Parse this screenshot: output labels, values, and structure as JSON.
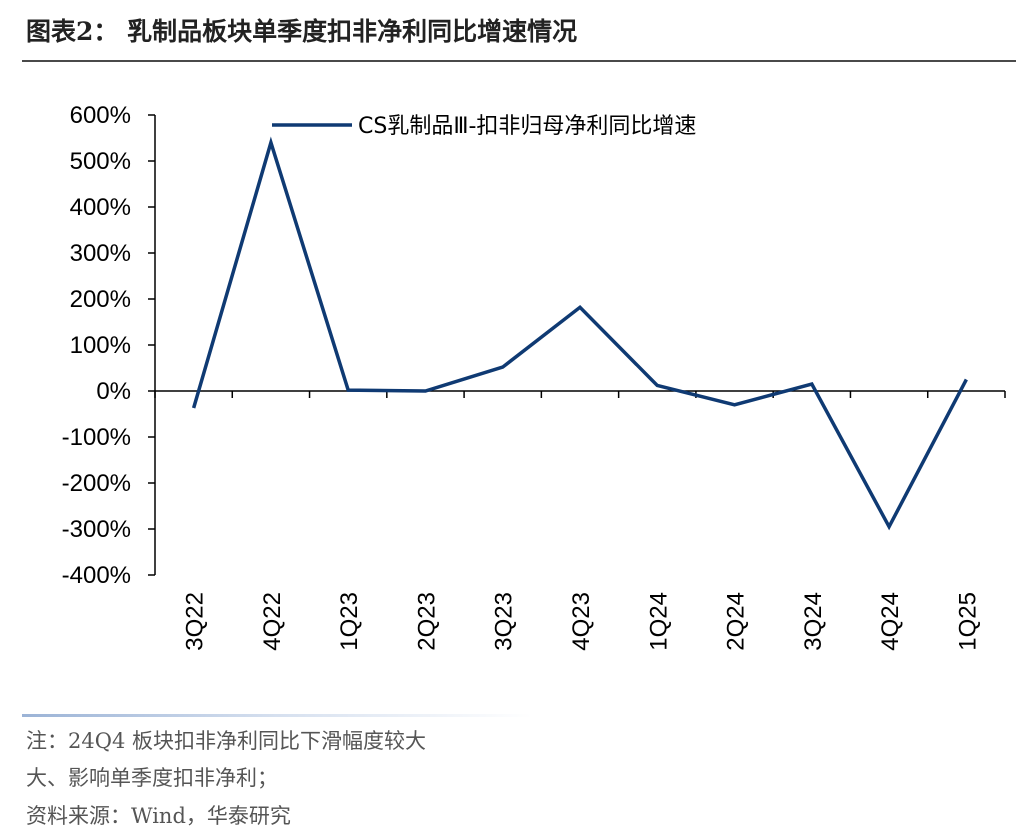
{
  "header": {
    "title": "图表2： 乳制品板块单季度扣非净利同比增速情况"
  },
  "notes": {
    "line1": "注：24Q4 板块扣非净利同比下滑幅度较大",
    "line2": "大、影响单季度扣非净利；",
    "source": "资料来源：Wind，华泰研究"
  },
  "colors": {
    "series": "#0f3a73",
    "axis": "#000000"
  },
  "chart_data": {
    "type": "line",
    "title": "",
    "xlabel": "",
    "ylabel": "",
    "categories": [
      "3Q22",
      "4Q22",
      "1Q23",
      "2Q23",
      "3Q23",
      "4Q23",
      "1Q24",
      "2Q24",
      "3Q24",
      "4Q24",
      "1Q25"
    ],
    "series": [
      {
        "name": "CS乳制品Ⅲ-扣非归母净利同比增速",
        "values": [
          -37,
          540,
          2,
          0,
          52,
          182,
          12,
          -30,
          15,
          -295,
          25
        ]
      }
    ],
    "ylim": [
      -400,
      600
    ],
    "yticks": [
      -400,
      -300,
      -200,
      -100,
      0,
      100,
      200,
      300,
      400,
      500,
      600
    ],
    "y_tick_format": "percent",
    "grid": false,
    "legend_position": "top"
  }
}
